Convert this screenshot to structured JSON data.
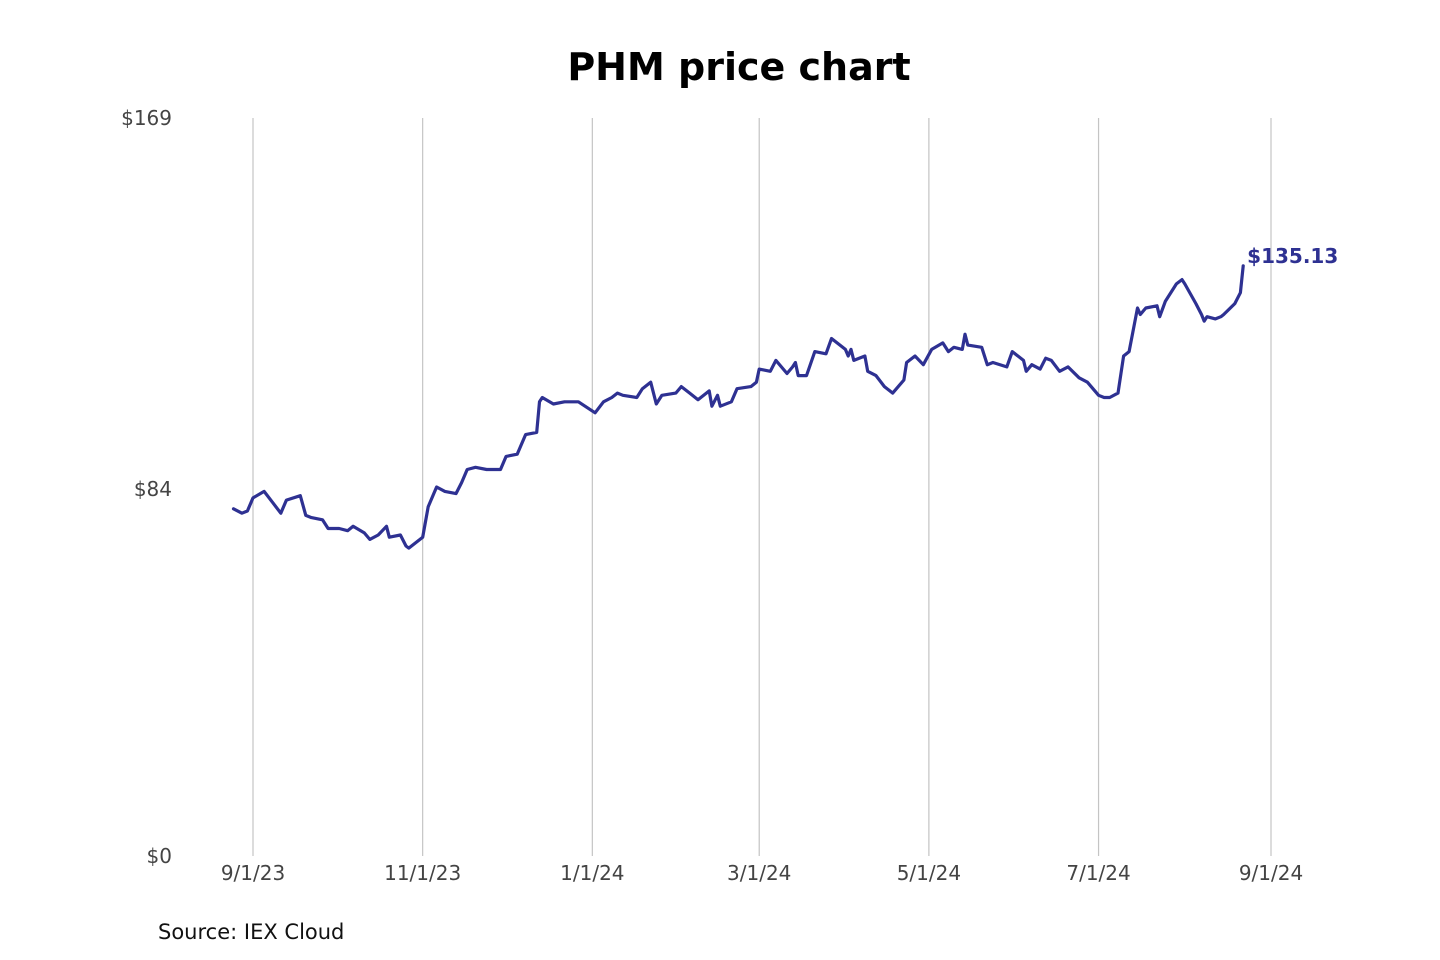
{
  "colors": {
    "line": "#2e3192",
    "grid": "#c4c4c4",
    "end_label": "#2e3192"
  },
  "source": "Source: IEX Cloud",
  "chart_data": {
    "type": "line",
    "title": "PHM price chart",
    "xlabel": "",
    "ylabel": "",
    "ylim": [
      0,
      169
    ],
    "xlim": [
      "2023-08-26",
      "2024-09-01"
    ],
    "yticks": [
      {
        "value": 0,
        "label": "$0"
      },
      {
        "value": 84,
        "label": "$84"
      },
      {
        "value": 169,
        "label": "$169"
      }
    ],
    "xticks": [
      {
        "date": "2023-09-01",
        "label": "9/1/23"
      },
      {
        "date": "2023-11-01",
        "label": "11/1/23"
      },
      {
        "date": "2024-01-01",
        "label": "1/1/24"
      },
      {
        "date": "2024-03-01",
        "label": "3/1/24"
      },
      {
        "date": "2024-05-01",
        "label": "5/1/24"
      },
      {
        "date": "2024-07-01",
        "label": "7/1/24"
      },
      {
        "date": "2024-09-01",
        "label": "9/1/24"
      }
    ],
    "grid": {
      "vertical": true,
      "horizontal": false
    },
    "end_label": "$135.13",
    "series": [
      {
        "points": [
          [
            "2023-08-25",
            79.5
          ],
          [
            "2023-08-28",
            78.5
          ],
          [
            "2023-08-30",
            79.0
          ],
          [
            "2023-09-01",
            82.0
          ],
          [
            "2023-09-05",
            83.5
          ],
          [
            "2023-09-08",
            81.0
          ],
          [
            "2023-09-11",
            78.5
          ],
          [
            "2023-09-13",
            81.5
          ],
          [
            "2023-09-18",
            82.5
          ],
          [
            "2023-09-20",
            78.0
          ],
          [
            "2023-09-22",
            77.5
          ],
          [
            "2023-09-26",
            77.0
          ],
          [
            "2023-09-28",
            75.0
          ],
          [
            "2023-10-02",
            75.0
          ],
          [
            "2023-10-05",
            74.5
          ],
          [
            "2023-10-07",
            75.5
          ],
          [
            "2023-10-11",
            74.0
          ],
          [
            "2023-10-13",
            72.5
          ],
          [
            "2023-10-16",
            73.5
          ],
          [
            "2023-10-19",
            75.5
          ],
          [
            "2023-10-20",
            73.0
          ],
          [
            "2023-10-24",
            73.5
          ],
          [
            "2023-10-26",
            71.0
          ],
          [
            "2023-10-27",
            70.5
          ],
          [
            "2023-10-30",
            72.0
          ],
          [
            "2023-11-01",
            73.0
          ],
          [
            "2023-11-03",
            80.0
          ],
          [
            "2023-11-06",
            84.5
          ],
          [
            "2023-11-09",
            83.5
          ],
          [
            "2023-11-13",
            83.0
          ],
          [
            "2023-11-15",
            85.5
          ],
          [
            "2023-11-17",
            88.5
          ],
          [
            "2023-11-20",
            89.0
          ],
          [
            "2023-11-24",
            88.5
          ],
          [
            "2023-11-29",
            88.5
          ],
          [
            "2023-12-01",
            91.5
          ],
          [
            "2023-12-05",
            92.0
          ],
          [
            "2023-12-08",
            96.5
          ],
          [
            "2023-12-12",
            97.0
          ],
          [
            "2023-12-13",
            104.0
          ],
          [
            "2023-12-14",
            105.0
          ],
          [
            "2023-12-18",
            103.5
          ],
          [
            "2023-12-22",
            104.0
          ],
          [
            "2023-12-27",
            104.0
          ],
          [
            "2024-01-02",
            101.5
          ],
          [
            "2024-01-05",
            104.0
          ],
          [
            "2024-01-08",
            105.0
          ],
          [
            "2024-01-10",
            106.0
          ],
          [
            "2024-01-12",
            105.5
          ],
          [
            "2024-01-17",
            105.0
          ],
          [
            "2024-01-19",
            107.0
          ],
          [
            "2024-01-22",
            108.5
          ],
          [
            "2024-01-24",
            103.5
          ],
          [
            "2024-01-26",
            105.5
          ],
          [
            "2024-01-31",
            106.0
          ],
          [
            "2024-02-02",
            107.5
          ],
          [
            "2024-02-05",
            106.0
          ],
          [
            "2024-02-08",
            104.5
          ],
          [
            "2024-02-12",
            106.5
          ],
          [
            "2024-02-13",
            103.0
          ],
          [
            "2024-02-15",
            105.5
          ],
          [
            "2024-02-16",
            103.0
          ],
          [
            "2024-02-20",
            104.0
          ],
          [
            "2024-02-22",
            107.0
          ],
          [
            "2024-02-27",
            107.5
          ],
          [
            "2024-02-29",
            108.5
          ],
          [
            "2024-03-01",
            111.5
          ],
          [
            "2024-03-05",
            111.0
          ],
          [
            "2024-03-07",
            113.5
          ],
          [
            "2024-03-11",
            110.5
          ],
          [
            "2024-03-13",
            112.0
          ],
          [
            "2024-03-14",
            113.0
          ],
          [
            "2024-03-15",
            110.0
          ],
          [
            "2024-03-18",
            110.0
          ],
          [
            "2024-03-21",
            115.5
          ],
          [
            "2024-03-25",
            115.0
          ],
          [
            "2024-03-27",
            118.5
          ],
          [
            "2024-03-29",
            117.5
          ],
          [
            "2024-04-01",
            116.0
          ],
          [
            "2024-04-02",
            114.5
          ],
          [
            "2024-04-03",
            116.0
          ],
          [
            "2024-04-04",
            113.5
          ],
          [
            "2024-04-08",
            114.5
          ],
          [
            "2024-04-09",
            111.0
          ],
          [
            "2024-04-12",
            110.0
          ],
          [
            "2024-04-15",
            107.5
          ],
          [
            "2024-04-18",
            106.0
          ],
          [
            "2024-04-22",
            109.0
          ],
          [
            "2024-04-23",
            113.0
          ],
          [
            "2024-04-26",
            114.5
          ],
          [
            "2024-04-29",
            112.5
          ],
          [
            "2024-05-02",
            116.0
          ],
          [
            "2024-05-06",
            117.5
          ],
          [
            "2024-05-08",
            115.5
          ],
          [
            "2024-05-10",
            116.5
          ],
          [
            "2024-05-13",
            116.0
          ],
          [
            "2024-05-14",
            119.5
          ],
          [
            "2024-05-15",
            117.0
          ],
          [
            "2024-05-20",
            116.5
          ],
          [
            "2024-05-22",
            112.5
          ],
          [
            "2024-05-24",
            113.0
          ],
          [
            "2024-05-29",
            112.0
          ],
          [
            "2024-05-31",
            115.5
          ],
          [
            "2024-06-04",
            113.5
          ],
          [
            "2024-06-05",
            111.0
          ],
          [
            "2024-06-07",
            112.5
          ],
          [
            "2024-06-10",
            111.5
          ],
          [
            "2024-06-12",
            114.0
          ],
          [
            "2024-06-14",
            113.5
          ],
          [
            "2024-06-17",
            111.0
          ],
          [
            "2024-06-20",
            112.0
          ],
          [
            "2024-06-24",
            109.5
          ],
          [
            "2024-06-27",
            108.5
          ],
          [
            "2024-07-01",
            105.5
          ],
          [
            "2024-07-03",
            105.0
          ],
          [
            "2024-07-05",
            105.0
          ],
          [
            "2024-07-08",
            106.0
          ],
          [
            "2024-07-10",
            114.5
          ],
          [
            "2024-07-12",
            115.5
          ],
          [
            "2024-07-15",
            125.5
          ],
          [
            "2024-07-16",
            124.0
          ],
          [
            "2024-07-18",
            125.5
          ],
          [
            "2024-07-22",
            126.0
          ],
          [
            "2024-07-23",
            123.5
          ],
          [
            "2024-07-25",
            127.0
          ],
          [
            "2024-07-29",
            131.0
          ],
          [
            "2024-07-31",
            132.0
          ],
          [
            "2024-08-01",
            131.0
          ],
          [
            "2024-08-05",
            126.5
          ],
          [
            "2024-08-07",
            124.0
          ],
          [
            "2024-08-08",
            122.5
          ],
          [
            "2024-08-09",
            123.5
          ],
          [
            "2024-08-12",
            123.0
          ],
          [
            "2024-08-14",
            123.5
          ],
          [
            "2024-08-15",
            124.0
          ],
          [
            "2024-08-19",
            126.5
          ],
          [
            "2024-08-21",
            129.0
          ],
          [
            "2024-08-22",
            135.13
          ]
        ]
      }
    ]
  }
}
